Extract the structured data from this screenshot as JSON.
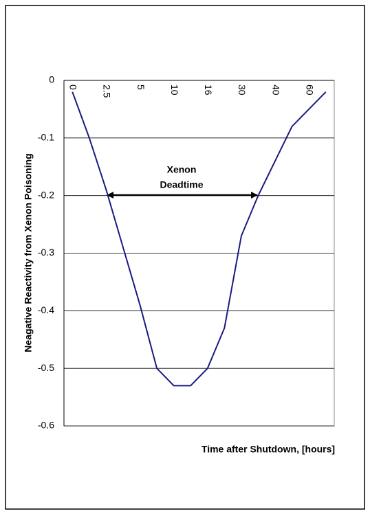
{
  "chart_data": {
    "type": "line",
    "y_label": "Neagative Reactivity from Xenon Poisoning",
    "x_label": "Time after Shutdown, [hours]",
    "annotation": [
      "Xenon",
      "Deadtime"
    ],
    "categories": [
      "0",
      null,
      "2.5",
      null,
      "5",
      null,
      "10",
      null,
      "16",
      null,
      "30",
      null,
      "40",
      null,
      "60",
      null
    ],
    "series": [
      {
        "color": "#1a1a80",
        "values": [
          -0.02,
          -0.1,
          -0.19,
          -0.29,
          -0.39,
          -0.5,
          -0.53,
          -0.53,
          -0.5,
          -0.43,
          -0.27,
          -0.2,
          -0.14,
          -0.08,
          -0.05,
          -0.02
        ]
      }
    ],
    "ylim": [
      -0.6,
      0
    ],
    "yticks": [
      0,
      -0.1,
      -0.2,
      -0.3,
      -0.4,
      -0.5,
      -0.6
    ],
    "grid": true
  }
}
